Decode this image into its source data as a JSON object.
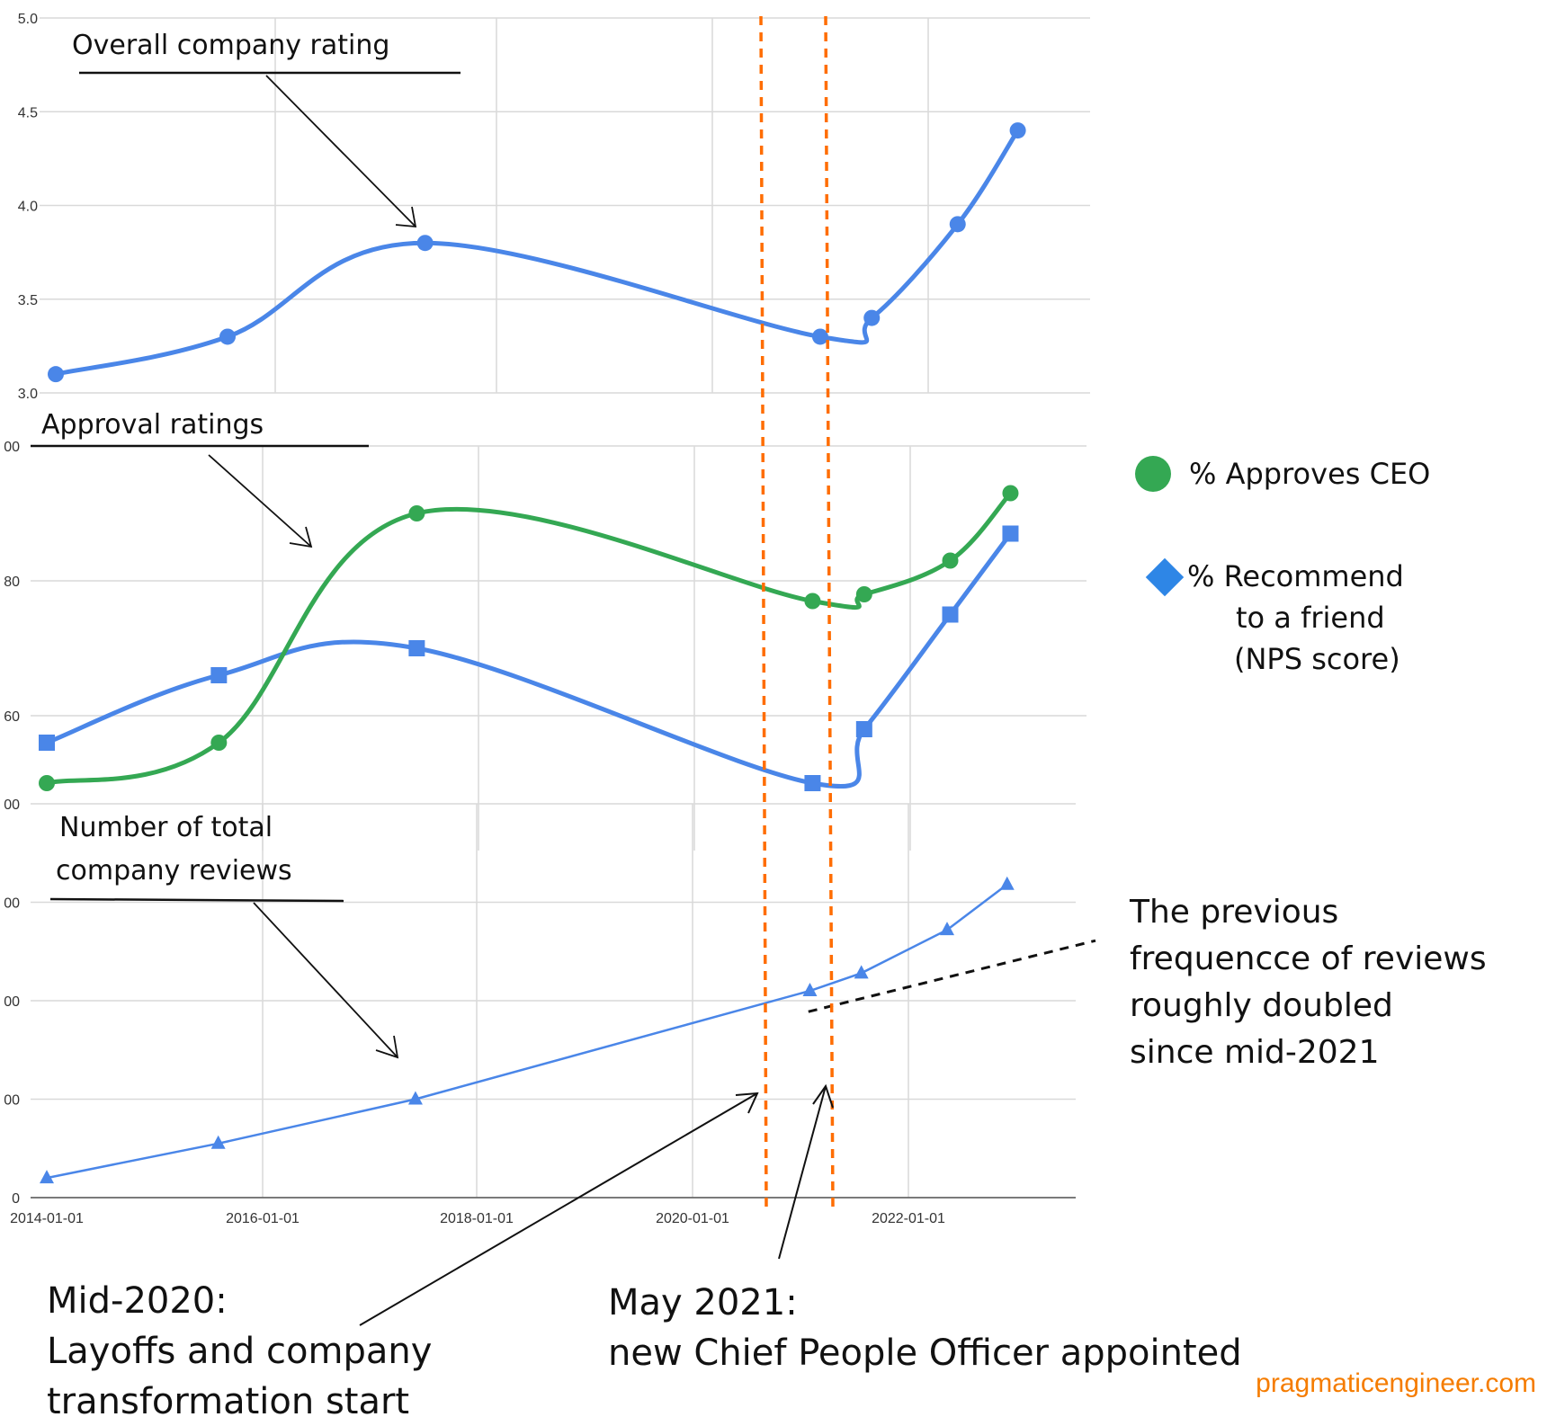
{
  "chart_data": [
    {
      "type": "line",
      "title": "Overall company rating",
      "x": [
        "2014-01-01",
        "2015-09-01",
        "2017-08-01",
        "2021-06-01",
        "2021-12-01",
        "2022-10-01",
        "2023-05-01"
      ],
      "series": [
        {
          "name": "Overall company rating",
          "values": [
            3.1,
            3.3,
            3.8,
            3.3,
            3.4,
            3.9,
            4.4
          ]
        }
      ],
      "ylim": [
        3.0,
        5.0
      ],
      "yticks": [
        "3.0",
        "3.5",
        "4.0",
        "4.5",
        "5.0"
      ],
      "xlabel": "",
      "ylabel": ""
    },
    {
      "type": "line",
      "title": "Approval ratings",
      "x": [
        "2014-01-01",
        "2015-09-01",
        "2017-08-01",
        "2021-06-01",
        "2021-12-01",
        "2022-10-01",
        "2023-05-01"
      ],
      "series": [
        {
          "name": "% Approves CEO",
          "values": [
            50,
            56,
            90,
            77,
            78,
            83,
            93
          ]
        },
        {
          "name": "% Recommend to a friend (NPS score)",
          "values": [
            56,
            66,
            70,
            50,
            58,
            75,
            87
          ]
        }
      ],
      "ylim": [
        40,
        100
      ],
      "yticks": [
        "60",
        "80",
        "00"
      ],
      "xlabel": "",
      "ylabel": ""
    },
    {
      "type": "line",
      "title": "Number of total company reviews",
      "x": [
        "2014-01-01",
        "2015-09-01",
        "2017-08-01",
        "2021-06-01",
        "2021-12-01",
        "2022-10-01",
        "2023-05-01"
      ],
      "series": [
        {
          "name": "Number of total company reviews",
          "values": [
            20,
            55,
            100,
            210,
            228,
            272,
            318
          ]
        }
      ],
      "trend": {
        "name": "previous frequency of reviews",
        "from": [
          "2021-01-01",
          198
        ],
        "to": [
          "2024-01-01",
          272
        ]
      },
      "ylim": [
        0,
        400
      ],
      "yticks": [
        "0",
        "00",
        "00",
        "00",
        "00"
      ],
      "xticks": [
        "2014-01-01",
        "2016-01-01",
        "2018-01-01",
        "2020-01-01",
        "2022-01-01"
      ],
      "xlabel": "",
      "ylabel": ""
    }
  ],
  "annotations": {
    "overall": "Overall company rating",
    "approval": "Approval ratings",
    "reviews_line1": "Number of total",
    "reviews_line2": "company reviews",
    "legend_ceo": "% Approves CEO",
    "legend_rec_line1": "% Recommend",
    "legend_rec_line2": "to a friend",
    "legend_rec_line3": "(NPS score)",
    "trend_line1": "The previous",
    "trend_line2": "frequencce of reviews",
    "trend_line3": "roughly doubled",
    "trend_line4": "since mid-2021",
    "mid2020_line1": "Mid-2020:",
    "mid2020_line2": "Layoffs and company",
    "mid2020_line3": "transformation start",
    "may2021_line1": "May 2021:",
    "may2021_line2": "new Chief People Officer appointed",
    "event_dates": [
      "2020-07-01",
      "2021-05-01"
    ],
    "watermark": "pragmaticengineer.com"
  },
  "colors": {
    "blue": "#4a86e8",
    "green": "#34a853",
    "orange": "#ff6d01",
    "grid": "#d9d9d9",
    "watermark": "#f57c00"
  }
}
